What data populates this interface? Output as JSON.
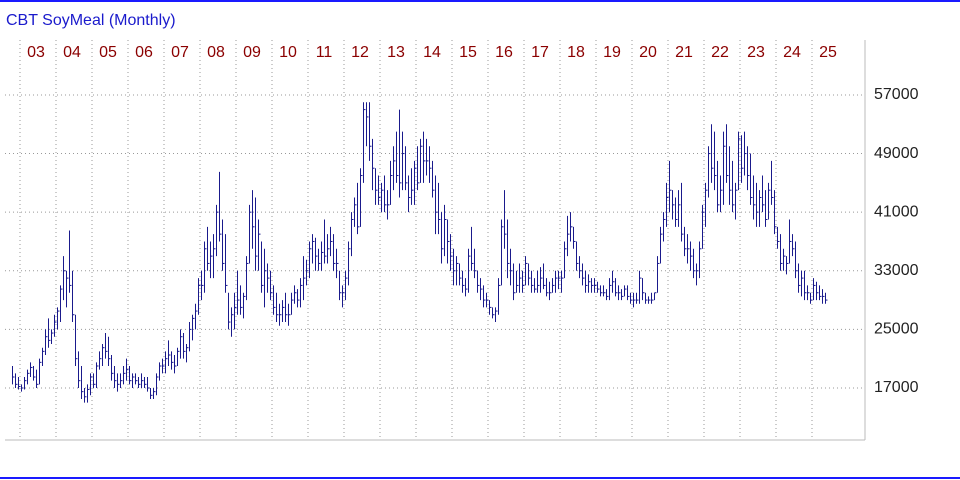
{
  "chart_data": {
    "type": "hlc",
    "title": "CBT SoyMeal (Monthly)",
    "color": "#1a1a8c",
    "grid": true,
    "ylim": [
      9900,
      64500
    ],
    "yticks": [
      17000,
      25000,
      33000,
      41000,
      49000,
      57000
    ],
    "categories": [
      null,
      null,
      null,
      "03",
      null,
      null,
      null,
      null,
      null,
      null,
      null,
      null,
      null,
      null,
      null,
      "04",
      null,
      null,
      null,
      null,
      null,
      null,
      null,
      null,
      null,
      null,
      null,
      "05",
      null,
      null,
      null,
      null,
      null,
      null,
      null,
      null,
      null,
      null,
      null,
      "06",
      null,
      null,
      null,
      null,
      null,
      null,
      null,
      null,
      null,
      null,
      null,
      "07",
      null,
      null,
      null,
      null,
      null,
      null,
      null,
      null,
      null,
      null,
      null,
      "08",
      null,
      null,
      null,
      null,
      null,
      null,
      null,
      null,
      null,
      null,
      null,
      "09",
      null,
      null,
      null,
      null,
      null,
      null,
      null,
      null,
      null,
      null,
      null,
      "10",
      null,
      null,
      null,
      null,
      null,
      null,
      null,
      null,
      null,
      null,
      null,
      "11",
      null,
      null,
      null,
      null,
      null,
      null,
      null,
      null,
      null,
      null,
      null,
      "12",
      null,
      null,
      null,
      null,
      null,
      null,
      null,
      null,
      null,
      null,
      null,
      "13",
      null,
      null,
      null,
      null,
      null,
      null,
      null,
      null,
      null,
      null,
      null,
      "14",
      null,
      null,
      null,
      null,
      null,
      null,
      null,
      null,
      null,
      null,
      null,
      "15",
      null,
      null,
      null,
      null,
      null,
      null,
      null,
      null,
      null,
      null,
      null,
      "16",
      null,
      null,
      null,
      null,
      null,
      null,
      null,
      null,
      null,
      null,
      null,
      "17",
      null,
      null,
      null,
      null,
      null,
      null,
      null,
      null,
      null,
      null,
      null,
      "18",
      null,
      null,
      null,
      null,
      null,
      null,
      null,
      null,
      null,
      null,
      null,
      "19",
      null,
      null,
      null,
      null,
      null,
      null,
      null,
      null,
      null,
      null,
      null,
      "20",
      null,
      null,
      null,
      null,
      null,
      null,
      null,
      null,
      null,
      null,
      null,
      "21",
      null,
      null,
      null,
      null,
      null,
      null,
      null,
      null,
      null,
      null,
      null,
      "22",
      null,
      null,
      null,
      null,
      null,
      null,
      null,
      null,
      null,
      null,
      null,
      "23",
      null,
      null,
      null,
      null,
      null,
      null,
      null,
      null,
      null,
      null,
      null,
      "24",
      null,
      null,
      null,
      null,
      null,
      null,
      null,
      null,
      null,
      null,
      null,
      "25",
      null,
      null,
      null,
      null
    ],
    "high": [
      20000,
      19000,
      18500,
      17500,
      18500,
      19500,
      20500,
      20000,
      19500,
      21000,
      22500,
      25000,
      26500,
      25000,
      27000,
      28000,
      31000,
      35000,
      33000,
      38500,
      33000,
      27000,
      22000,
      20000,
      17000,
      17500,
      19000,
      19000,
      20500,
      22000,
      23000,
      24500,
      24000,
      21500,
      20000,
      19000,
      19000,
      20000,
      21000,
      20000,
      19000,
      19000,
      18500,
      19000,
      18500,
      18500,
      17000,
      17000,
      19000,
      20500,
      21000,
      22000,
      23500,
      22000,
      21500,
      22500,
      25000,
      24500,
      23000,
      26000,
      27000,
      28500,
      32000,
      33000,
      37000,
      39000,
      37000,
      38000,
      42000,
      46500,
      40000,
      38000,
      30000,
      28000,
      30000,
      33000,
      31000,
      30000,
      35000,
      42000,
      44000,
      43000,
      40000,
      37000,
      36000,
      34000,
      33000,
      31000,
      30000,
      28500,
      29000,
      30000,
      28500,
      30000,
      31000,
      30500,
      32000,
      35000,
      34500,
      37000,
      38000,
      37500,
      36000,
      37000,
      40000,
      38000,
      39000,
      38000,
      36000,
      33000,
      31000,
      33000,
      37000,
      41000,
      43000,
      45000,
      47000,
      56000,
      56000,
      56000,
      51000,
      47000,
      46000,
      45000,
      46000,
      44000,
      48000,
      50000,
      52000,
      55000,
      52000,
      50000,
      46000,
      47000,
      48000,
      50000,
      51000,
      52000,
      51000,
      50000,
      48000,
      46000,
      45000,
      41000,
      42000,
      40000,
      38000,
      36000,
      35000,
      34000,
      33000,
      32000,
      36000,
      39000,
      36000,
      33000,
      32000,
      31000,
      30000,
      29000,
      28000,
      28000,
      32000,
      40000,
      44000,
      40000,
      36000,
      34000,
      33000,
      34000,
      33000,
      35000,
      34000,
      33000,
      32000,
      33000,
      33500,
      34000,
      32000,
      31500,
      32000,
      33000,
      33000,
      33000,
      37000,
      40500,
      41000,
      39000,
      37000,
      35000,
      34000,
      33000,
      32500,
      32000,
      32000,
      31500,
      31000,
      31000,
      30500,
      32000,
      33000,
      32000,
      31000,
      30500,
      31000,
      31000,
      30000,
      30000,
      30000,
      33000,
      32000,
      30000,
      29500,
      30000,
      30000,
      35000,
      39000,
      41000,
      45000,
      48000,
      44000,
      43000,
      44000,
      45000,
      39000,
      38000,
      37000,
      36000,
      34000,
      37000,
      42000,
      45000,
      50000,
      53000,
      52000,
      48000,
      46000,
      52000,
      53000,
      50000,
      48000,
      45000,
      52000,
      51500,
      52000,
      50000,
      49000,
      46000,
      45000,
      44000,
      46000,
      44000,
      45000,
      48000,
      44000,
      39000,
      38000,
      36000,
      35000,
      40000,
      38000,
      37000,
      34000,
      33000,
      33000,
      31000,
      30000,
      32000,
      31500,
      31000,
      30500,
      30000
    ],
    "low": [
      17500,
      17000,
      16800,
      16500,
      16800,
      17500,
      18500,
      18000,
      17000,
      17500,
      20000,
      21500,
      22500,
      23000,
      24000,
      25000,
      26000,
      29000,
      28000,
      30000,
      26000,
      20000,
      17000,
      15500,
      15000,
      15000,
      16000,
      17000,
      17000,
      19500,
      20000,
      21000,
      20000,
      18000,
      17000,
      16500,
      17000,
      17500,
      18000,
      17500,
      17000,
      17500,
      17000,
      17000,
      17000,
      16500,
      15500,
      15500,
      16000,
      18000,
      19000,
      19000,
      20000,
      19500,
      19000,
      20000,
      21000,
      21000,
      20500,
      22000,
      23500,
      25000,
      27000,
      29000,
      30000,
      33000,
      32000,
      32000,
      35000,
      37000,
      33000,
      30000,
      25000,
      24000,
      25000,
      27000,
      27000,
      26500,
      29000,
      34000,
      36000,
      33000,
      33000,
      30000,
      28000,
      30000,
      29000,
      27000,
      26000,
      25500,
      26000,
      26000,
      25500,
      27000,
      28500,
      28000,
      28000,
      29000,
      31000,
      32000,
      34000,
      33000,
      33000,
      33000,
      34000,
      34000,
      35000,
      33000,
      32000,
      29000,
      28000,
      29000,
      31000,
      35000,
      39000,
      38000,
      39000,
      45000,
      50000,
      48000,
      44000,
      42000,
      42000,
      41000,
      41000,
      40000,
      42000,
      44000,
      45000,
      43000,
      44000,
      44000,
      41000,
      42000,
      42000,
      44000,
      45000,
      45000,
      46000,
      45000,
      43000,
      38000,
      38000,
      34000,
      35000,
      34000,
      33000,
      31000,
      31000,
      31000,
      30000,
      29500,
      30000,
      33000,
      32000,
      30000,
      29000,
      28000,
      28000,
      27000,
      26500,
      26000,
      27000,
      31000,
      36000,
      32000,
      31000,
      29000,
      30000,
      30000,
      30000,
      31000,
      31000,
      30000,
      30000,
      30000,
      30000,
      30500,
      29500,
      29000,
      30000,
      30000,
      30500,
      30000,
      32000,
      35000,
      37000,
      36000,
      33000,
      32000,
      31000,
      30000,
      30000,
      30000,
      30000,
      30000,
      29500,
      29500,
      29000,
      29000,
      30000,
      29500,
      29000,
      29000,
      29500,
      29000,
      28500,
      28000,
      28500,
      28500,
      29000,
      28500,
      28500,
      28500,
      29000,
      30000,
      34000,
      37000,
      39000,
      41000,
      40000,
      39000,
      39000,
      37000,
      35000,
      34000,
      33000,
      32000,
      31000,
      32000,
      36000,
      39000,
      43000,
      45000,
      44000,
      41000,
      41000,
      42000,
      45000,
      42000,
      41000,
      40000,
      44000,
      45000,
      46000,
      44000,
      42000,
      40000,
      39000,
      39000,
      41000,
      39000,
      40000,
      42000,
      38000,
      36000,
      33000,
      33000,
      32500,
      34000,
      35000,
      32000,
      30000,
      29500,
      29000,
      29000,
      28500,
      29000,
      29000,
      29000,
      28500,
      28500
    ],
    "close": [
      18500,
      17500,
      17200,
      17000,
      18000,
      19000,
      19800,
      18500,
      17500,
      20500,
      22000,
      24000,
      23500,
      24500,
      26000,
      27500,
      30500,
      33000,
      32000,
      31000,
      27000,
      21000,
      18000,
      16500,
      15800,
      16800,
      18500,
      17500,
      20000,
      21000,
      22500,
      22000,
      21000,
      19000,
      18000,
      17500,
      18000,
      19000,
      19500,
      18000,
      18500,
      18000,
      17500,
      18000,
      17500,
      17000,
      16000,
      16500,
      18500,
      20000,
      20000,
      21000,
      21500,
      20500,
      20000,
      22000,
      24000,
      22000,
      22500,
      25000,
      26500,
      27500,
      31000,
      31000,
      36000,
      34000,
      35000,
      36000,
      41000,
      38000,
      34000,
      31000,
      26000,
      27000,
      28000,
      29000,
      28000,
      29500,
      34000,
      41000,
      39000,
      35000,
      38000,
      31000,
      33000,
      32000,
      30000,
      28000,
      27000,
      27000,
      28000,
      27000,
      27000,
      29000,
      30000,
      29000,
      31000,
      32000,
      33000,
      36000,
      37000,
      35000,
      34000,
      35500,
      35000,
      36000,
      37000,
      34000,
      34000,
      30000,
      30000,
      32000,
      36000,
      40000,
      42000,
      39000,
      46000,
      55000,
      54000,
      50000,
      47000,
      44000,
      43000,
      44000,
      42000,
      42000,
      46000,
      48000,
      46000,
      45000,
      49000,
      45000,
      43000,
      44000,
      47000,
      45000,
      50000,
      48000,
      48000,
      47000,
      44000,
      41000,
      40000,
      36000,
      40000,
      37000,
      35000,
      33000,
      34000,
      32000,
      31000,
      30500,
      35000,
      34000,
      33000,
      31000,
      30500,
      29000,
      29000,
      28000,
      27000,
      27500,
      31000,
      39000,
      38000,
      34000,
      33000,
      30000,
      31000,
      32000,
      31000,
      34000,
      32000,
      31000,
      30500,
      31000,
      32000,
      31000,
      30000,
      30000,
      31000,
      32000,
      32000,
      32000,
      36000,
      38000,
      39000,
      37000,
      34000,
      33000,
      32000,
      31000,
      31500,
      31000,
      31000,
      30500,
      30000,
      30000,
      29500,
      31000,
      31500,
      30000,
      30000,
      29500,
      30500,
      29500,
      29000,
      29000,
      29000,
      32000,
      30000,
      29000,
      29000,
      29000,
      30000,
      34000,
      38000,
      40000,
      43000,
      44000,
      42000,
      40000,
      42000,
      38000,
      36000,
      36000,
      35000,
      33000,
      33000,
      36000,
      41000,
      44000,
      49000,
      47000,
      46000,
      42000,
      44000,
      50000,
      46000,
      44000,
      42000,
      44000,
      51000,
      47000,
      49000,
      46000,
      43000,
      42000,
      41000,
      43000,
      42000,
      40000,
      44000,
      43000,
      39000,
      37000,
      34000,
      35000,
      34000,
      37000,
      36000,
      33000,
      31000,
      32000,
      30000,
      30000,
      29000,
      31000,
      30000,
      29500,
      29500,
      29000
    ]
  }
}
